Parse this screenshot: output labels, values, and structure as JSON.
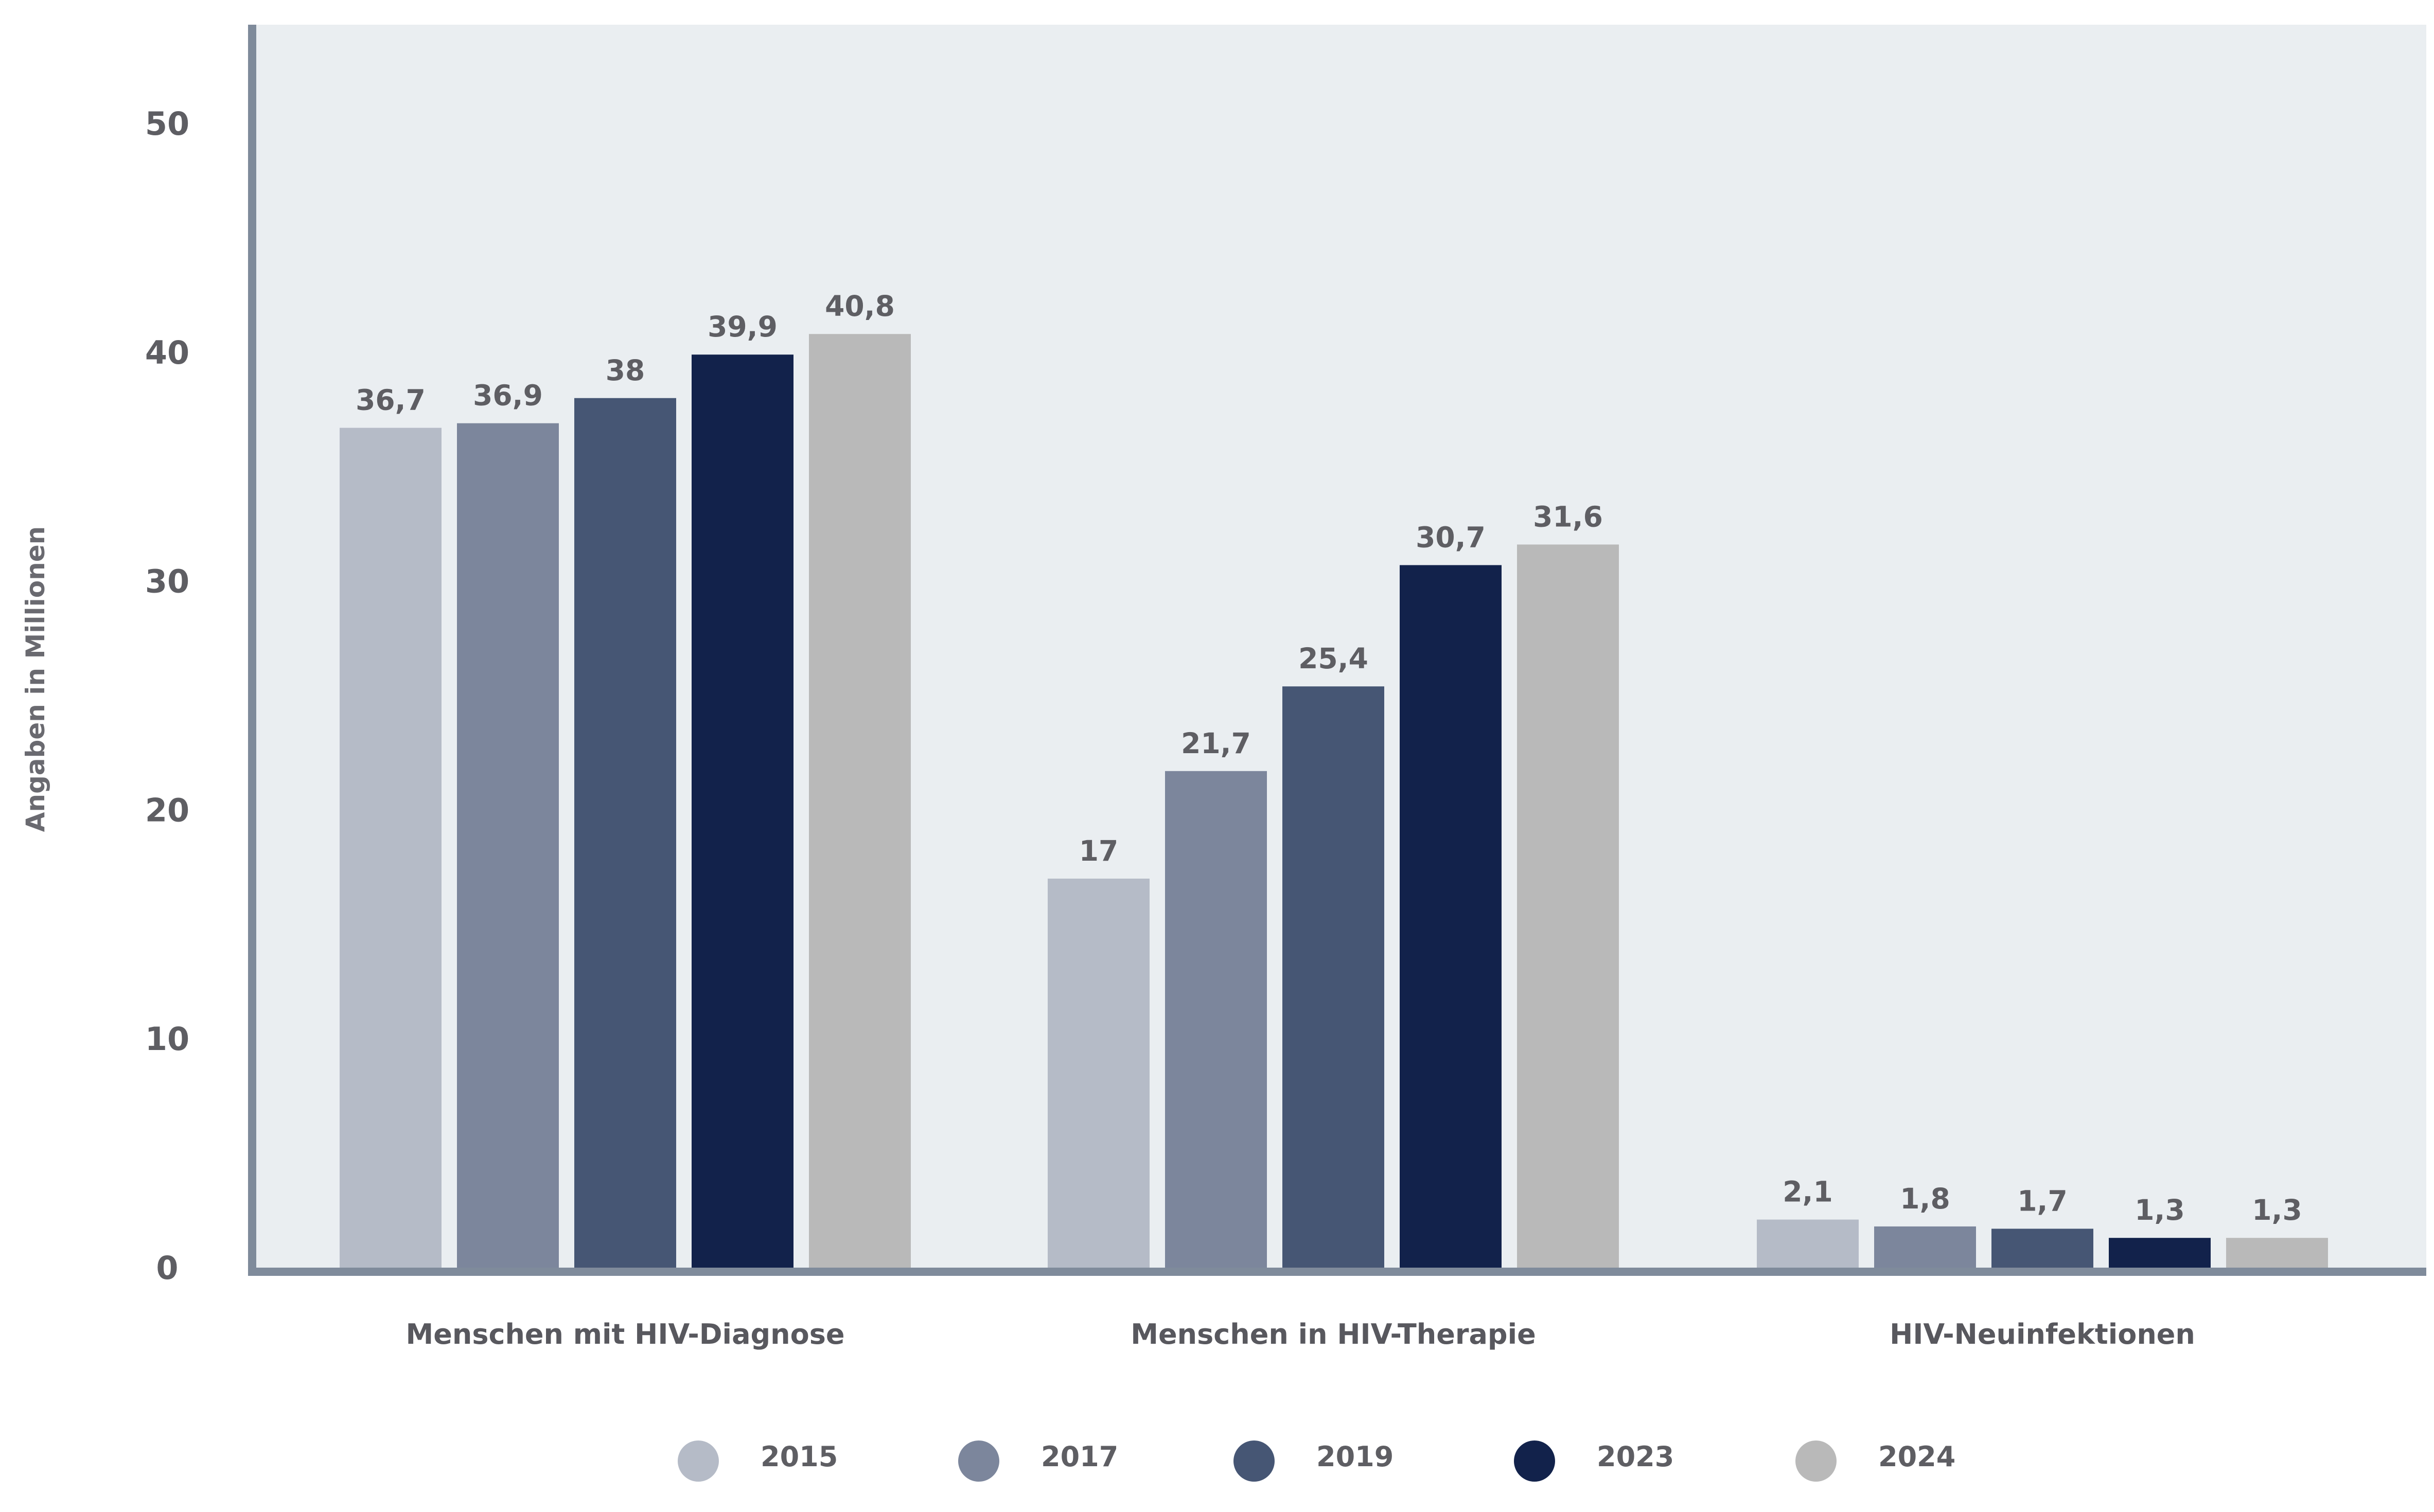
{
  "chart_data": {
    "type": "bar",
    "ylabel": "Angaben in Millionen",
    "ylim": [
      0,
      55
    ],
    "yticks": [
      "0",
      "10",
      "20",
      "30",
      "40",
      "50"
    ],
    "categories": [
      "Menschen mit HIV-Diagnose",
      "Menschen in HIV-Therapie",
      "HIV-Neuinfektionen"
    ],
    "series": [
      {
        "name": "2015",
        "color": "#b5bbc7",
        "values": [
          36.7,
          17,
          2.1
        ],
        "labels": [
          "36,7",
          "17",
          "2,1"
        ]
      },
      {
        "name": "2017",
        "color": "#7c869c",
        "values": [
          36.9,
          21.7,
          1.8
        ],
        "labels": [
          "36,9",
          "21,7",
          "1,8"
        ]
      },
      {
        "name": "2019",
        "color": "#465674",
        "values": [
          38,
          25.4,
          1.7
        ],
        "labels": [
          "38",
          "25,4",
          "1,7"
        ]
      },
      {
        "name": "2023",
        "color": "#12224b",
        "values": [
          39.9,
          30.7,
          1.3
        ],
        "labels": [
          "39,9",
          "30,7",
          "1,3"
        ]
      },
      {
        "name": "2024",
        "color": "#b9b9b9",
        "values": [
          40.8,
          31.6,
          1.3
        ],
        "labels": [
          "40,8",
          "31,6",
          "1,3"
        ]
      }
    ],
    "legend_position": "bottom",
    "grid": false,
    "colors": {
      "plot_background": "#eaeef1",
      "axis": "#7f8b9b"
    }
  }
}
